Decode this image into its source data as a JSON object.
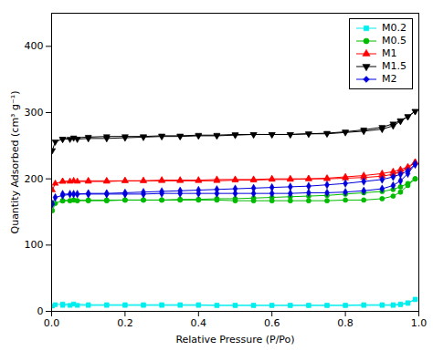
{
  "chart_data": {
    "type": "line",
    "xlabel": "Relative Pressure (P/Po)",
    "ylabel": "Quantity Adsorbed (cm³ g⁻¹)",
    "xlim": [
      0.0,
      1.0
    ],
    "ylim": [
      0,
      450
    ],
    "xticks": [
      {
        "value": 0.0,
        "label": "0.0"
      },
      0.2,
      0.4,
      0.6,
      0.8,
      {
        "value": 1.0,
        "label": "1.0"
      }
    ],
    "yticks": [
      0,
      100,
      200,
      300,
      400
    ],
    "grid": false,
    "legend": "upper right",
    "series": [
      {
        "name": "M0.2",
        "color": "#00eeee",
        "marker": "square",
        "line_style": "solid",
        "adsorption": {
          "x": [
            0.002,
            0.01,
            0.03,
            0.06,
            0.1,
            0.15,
            0.2,
            0.25,
            0.3,
            0.35,
            0.4,
            0.45,
            0.5,
            0.55,
            0.6,
            0.65,
            0.7,
            0.75,
            0.8,
            0.85,
            0.9,
            0.93,
            0.95,
            0.97,
            0.99
          ],
          "values": [
            8,
            10,
            11,
            11,
            10,
            10,
            10,
            10,
            10,
            10,
            10,
            9,
            9,
            9,
            9,
            9,
            9,
            9,
            9,
            9,
            9,
            9,
            10,
            12,
            18
          ]
        },
        "desorption": {
          "x": [
            0.99,
            0.97,
            0.95,
            0.93,
            0.9,
            0.85,
            0.8,
            0.75,
            0.7,
            0.65,
            0.6,
            0.55,
            0.5,
            0.45,
            0.4,
            0.35,
            0.3,
            0.25,
            0.2,
            0.15,
            0.1,
            0.07,
            0.05,
            0.03
          ],
          "values": [
            18,
            13,
            11,
            10,
            10,
            10,
            9,
            9,
            9,
            9,
            9,
            9,
            9,
            9,
            9,
            9,
            9,
            9,
            9,
            9,
            9,
            9,
            9,
            9
          ]
        }
      },
      {
        "name": "M0.5",
        "color": "#00bb00",
        "marker": "circle",
        "line_style": "solid",
        "adsorption": {
          "x": [
            0.002,
            0.01,
            0.03,
            0.06,
            0.1,
            0.15,
            0.2,
            0.25,
            0.3,
            0.35,
            0.4,
            0.45,
            0.5,
            0.55,
            0.6,
            0.65,
            0.7,
            0.75,
            0.8,
            0.85,
            0.9,
            0.93,
            0.95,
            0.97,
            0.99
          ],
          "values": [
            152,
            163,
            167,
            168,
            168,
            168,
            168,
            168,
            168,
            168,
            168,
            168,
            167,
            167,
            167,
            167,
            167,
            167,
            168,
            168,
            170,
            174,
            180,
            190,
            200
          ]
        },
        "desorption": {
          "x": [
            0.99,
            0.97,
            0.95,
            0.93,
            0.9,
            0.85,
            0.8,
            0.75,
            0.7,
            0.65,
            0.6,
            0.55,
            0.5,
            0.45,
            0.4,
            0.35,
            0.3,
            0.25,
            0.2,
            0.15,
            0.1,
            0.07,
            0.05,
            0.03
          ],
          "values": [
            200,
            193,
            188,
            184,
            181,
            179,
            177,
            175,
            174,
            173,
            172,
            171,
            170,
            170,
            169,
            169,
            168,
            168,
            168,
            167,
            167,
            167,
            167,
            167
          ]
        }
      },
      {
        "name": "M1",
        "color": "#ff0000",
        "marker": "triangle-up",
        "line_style": "solid",
        "adsorption": {
          "x": [
            0.002,
            0.01,
            0.03,
            0.06,
            0.1,
            0.15,
            0.2,
            0.25,
            0.3,
            0.35,
            0.4,
            0.45,
            0.5,
            0.55,
            0.6,
            0.65,
            0.7,
            0.75,
            0.8,
            0.85,
            0.9,
            0.93,
            0.95,
            0.97,
            0.99
          ],
          "values": [
            183,
            193,
            196,
            197,
            197,
            197,
            197,
            197,
            198,
            198,
            198,
            199,
            199,
            199,
            200,
            200,
            200,
            200,
            201,
            202,
            204,
            207,
            211,
            216,
            225
          ]
        },
        "desorption": {
          "x": [
            0.99,
            0.97,
            0.95,
            0.93,
            0.9,
            0.85,
            0.8,
            0.75,
            0.7,
            0.65,
            0.6,
            0.55,
            0.5,
            0.45,
            0.4,
            0.35,
            0.3,
            0.25,
            0.2,
            0.15,
            0.1,
            0.07,
            0.05,
            0.03
          ],
          "values": [
            225,
            218,
            214,
            211,
            208,
            205,
            203,
            201,
            200,
            199,
            199,
            198,
            198,
            197,
            197,
            197,
            197,
            197,
            197,
            196,
            196,
            196,
            196,
            196
          ]
        }
      },
      {
        "name": "M1.5",
        "color": "#000000",
        "marker": "triangle-down",
        "line_style": "solid",
        "adsorption": {
          "x": [
            0.002,
            0.01,
            0.03,
            0.06,
            0.1,
            0.15,
            0.2,
            0.25,
            0.3,
            0.35,
            0.4,
            0.45,
            0.5,
            0.55,
            0.6,
            0.65,
            0.7,
            0.75,
            0.8,
            0.85,
            0.9,
            0.93,
            0.95,
            0.97,
            0.99
          ],
          "values": [
            243,
            256,
            260,
            262,
            263,
            264,
            264,
            264,
            265,
            265,
            266,
            266,
            267,
            267,
            267,
            267,
            268,
            268,
            270,
            272,
            275,
            280,
            287,
            294,
            302
          ]
        },
        "desorption": {
          "x": [
            0.99,
            0.97,
            0.95,
            0.93,
            0.9,
            0.85,
            0.8,
            0.75,
            0.7,
            0.65,
            0.6,
            0.55,
            0.5,
            0.45,
            0.4,
            0.35,
            0.3,
            0.25,
            0.2,
            0.15,
            0.1,
            0.07,
            0.05,
            0.03
          ],
          "values": [
            302,
            294,
            288,
            283,
            278,
            274,
            271,
            269,
            268,
            267,
            267,
            267,
            266,
            265,
            265,
            264,
            264,
            263,
            262,
            261,
            261,
            260,
            260,
            260
          ]
        }
      },
      {
        "name": "M2",
        "color": "#0000dd",
        "marker": "diamond",
        "line_style": "solid",
        "adsorption": {
          "x": [
            0.002,
            0.01,
            0.03,
            0.06,
            0.1,
            0.15,
            0.2,
            0.25,
            0.3,
            0.35,
            0.4,
            0.45,
            0.5,
            0.55,
            0.6,
            0.65,
            0.7,
            0.75,
            0.8,
            0.85,
            0.9,
            0.93,
            0.95,
            0.97,
            0.99
          ],
          "values": [
            162,
            172,
            175,
            177,
            177,
            177,
            177,
            177,
            178,
            178,
            178,
            178,
            178,
            178,
            178,
            178,
            179,
            179,
            180,
            182,
            185,
            190,
            197,
            208,
            222
          ]
        },
        "desorption": {
          "x": [
            0.99,
            0.97,
            0.95,
            0.93,
            0.9,
            0.85,
            0.8,
            0.75,
            0.7,
            0.65,
            0.6,
            0.55,
            0.5,
            0.45,
            0.4,
            0.35,
            0.3,
            0.25,
            0.2,
            0.15,
            0.1,
            0.07,
            0.05,
            0.03
          ],
          "values": [
            222,
            212,
            207,
            203,
            199,
            196,
            193,
            191,
            189,
            188,
            187,
            186,
            185,
            184,
            183,
            182,
            181,
            180,
            179,
            178,
            178,
            177,
            177,
            177
          ]
        }
      }
    ]
  }
}
